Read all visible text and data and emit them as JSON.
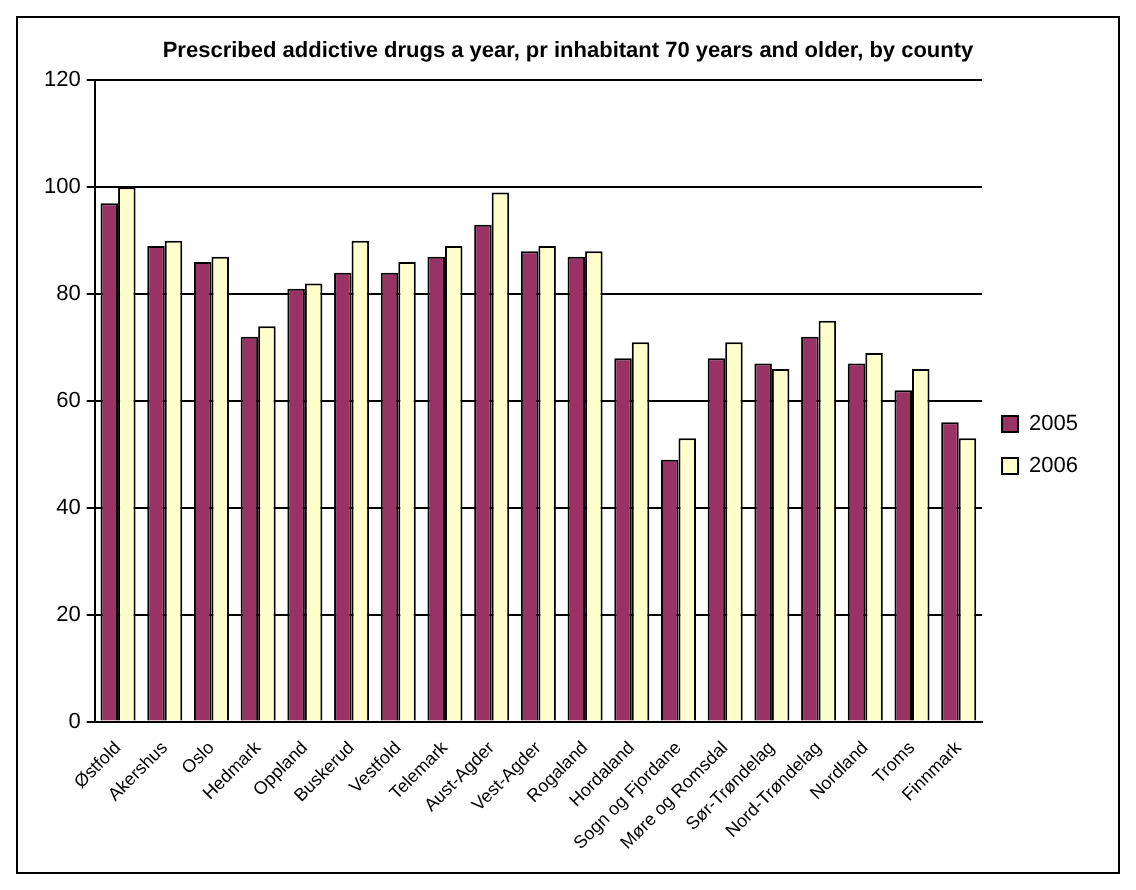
{
  "chart_data": {
    "type": "bar",
    "title": "Prescribed addictive drugs a year, pr inhabitant 70 years and older, by county",
    "categories": [
      "Østfold",
      "Akershus",
      "Oslo",
      "Hedmark",
      "Oppland",
      "Buskerud",
      "Vestfold",
      "Telemark",
      "Aust-Agder",
      "Vest-Agder",
      "Rogaland",
      "Hordaland",
      "Sogn og Fjordane",
      "Møre og Romsdal",
      "Sør-Trøndelag",
      "Nord-Trøndelag",
      "Nordland",
      "Troms",
      "Finnmark"
    ],
    "series": [
      {
        "name": "2005",
        "color": "#993366",
        "values": [
          97,
          89,
          86,
          72,
          81,
          84,
          84,
          87,
          93,
          88,
          87,
          68,
          49,
          68,
          67,
          72,
          67,
          62,
          56
        ]
      },
      {
        "name": "2006",
        "color": "#ffffcc",
        "values": [
          100,
          90,
          87,
          74,
          82,
          90,
          86,
          89,
          99,
          89,
          88,
          71,
          53,
          71,
          66,
          75,
          69,
          66,
          53
        ]
      }
    ],
    "ylim": [
      0,
      120
    ],
    "yticks": [
      0,
      20,
      40,
      60,
      80,
      100,
      120
    ],
    "grid": "y",
    "legend": "right"
  }
}
